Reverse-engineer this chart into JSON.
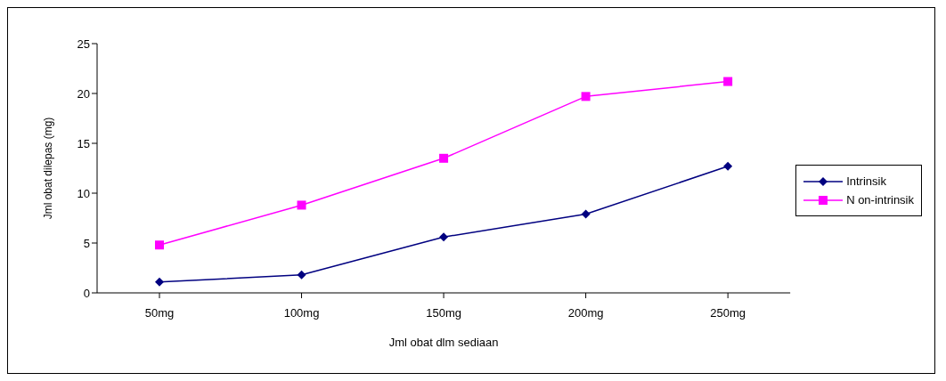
{
  "chart_data": {
    "type": "line",
    "xlabel": "Jml obat dlm sediaan",
    "ylabel": "Jml obat dilepas (mg)",
    "categories": [
      "50mg",
      "100mg",
      "150mg",
      "200mg",
      "250mg"
    ],
    "series": [
      {
        "name": "Intrinsik",
        "color": "#000080",
        "marker": "diamond",
        "values": [
          1.1,
          1.8,
          5.6,
          7.9,
          12.7
        ]
      },
      {
        "name": "N on-intrinsik",
        "color": "#ff00ff",
        "marker": "square",
        "values": [
          4.8,
          8.8,
          13.5,
          19.7,
          21.2
        ]
      }
    ],
    "ylim": [
      0,
      25
    ],
    "yticks": [
      0,
      5,
      10,
      15,
      20,
      25
    ],
    "grid": false,
    "legend": "right"
  }
}
